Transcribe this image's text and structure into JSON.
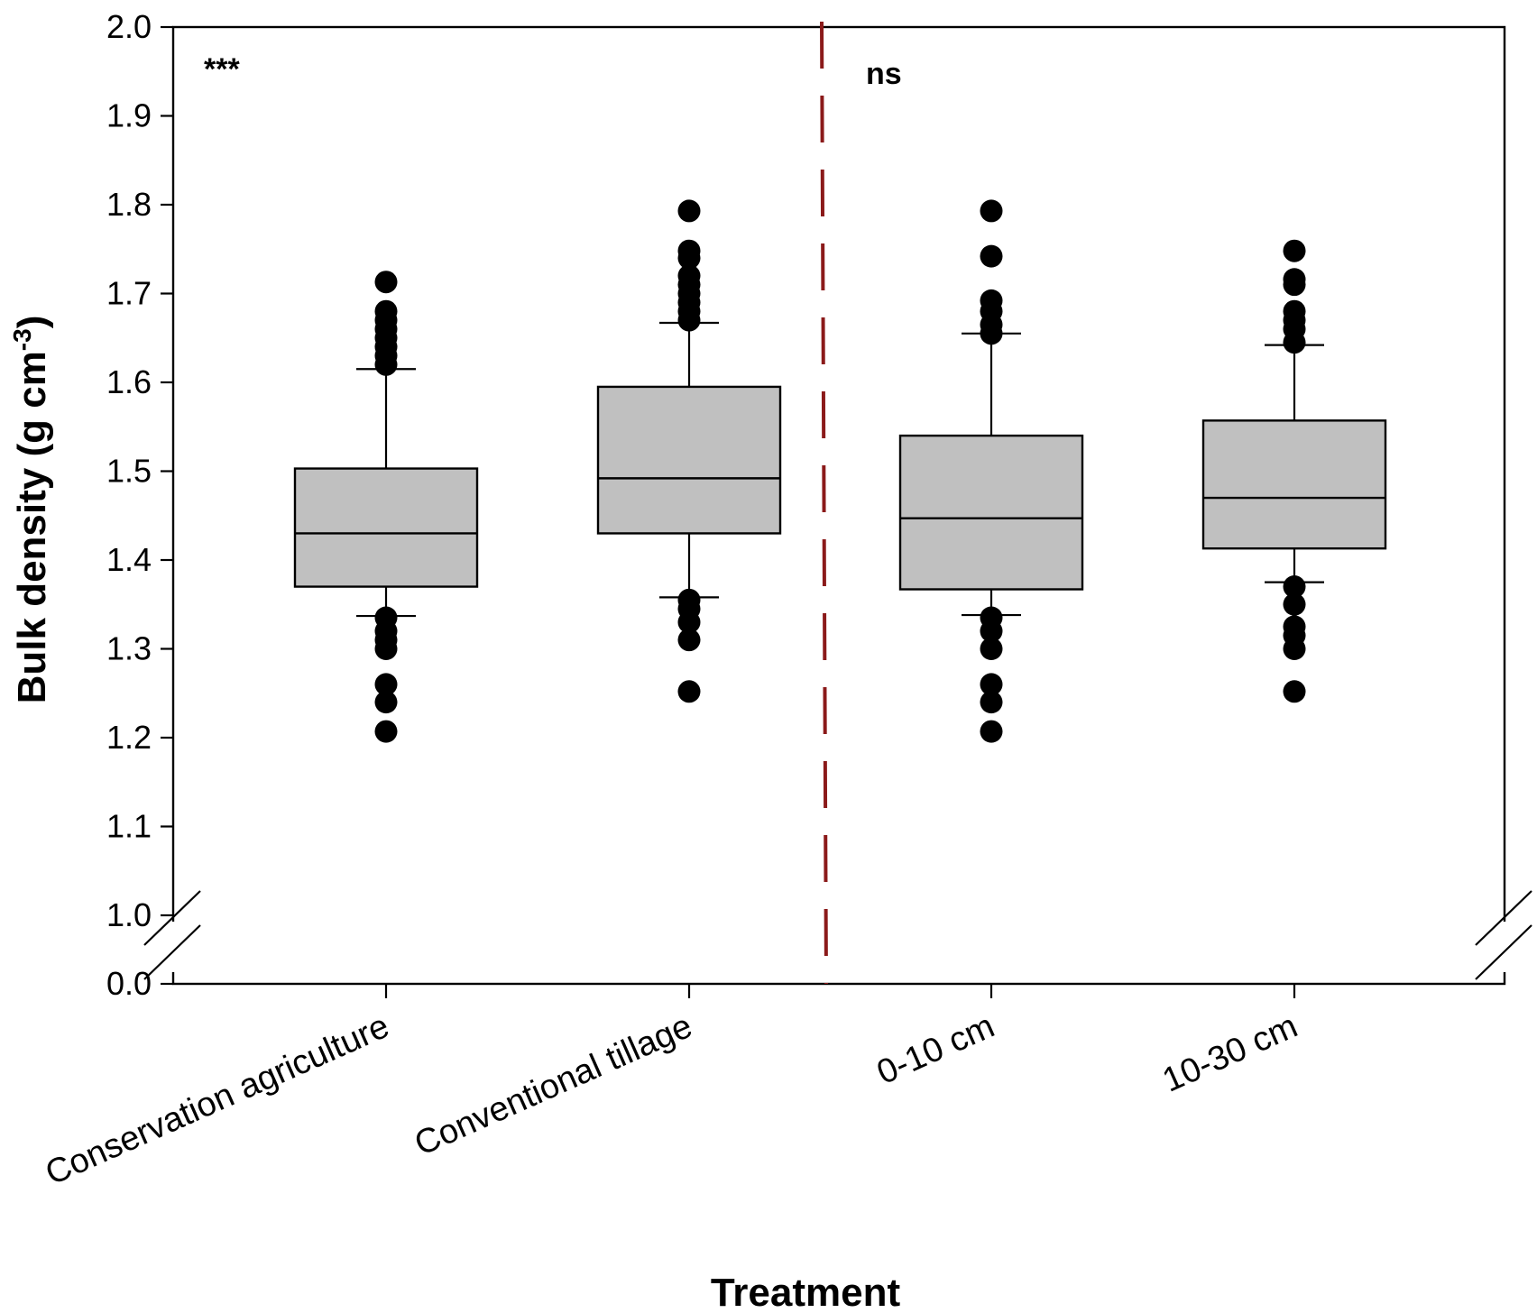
{
  "chart_data": {
    "type": "box",
    "title": "",
    "xlabel": "Treatment",
    "ylabel": "Bulk density (g cm",
    "ylabel_superscript": "-3",
    "ylabel_close": ")",
    "y_axis_break": true,
    "ylim": [
      1.0,
      2.0
    ],
    "yticks": [
      "2.0",
      "1.9",
      "1.8",
      "1.7",
      "1.6",
      "1.5",
      "1.4",
      "1.3",
      "1.2",
      "1.1",
      "1.0",
      "0.0"
    ],
    "categories": [
      "Conservation agriculture",
      "Conventional tillage",
      "0-10 cm",
      "10-30 cm"
    ],
    "boxes": [
      {
        "name": "Conservation agriculture",
        "whisker_low": 1.337,
        "q1": 1.37,
        "median": 1.43,
        "q3": 1.503,
        "whisker_high": 1.615,
        "outliers": [
          1.713,
          1.68,
          1.67,
          1.66,
          1.65,
          1.64,
          1.63,
          1.62,
          1.335,
          1.32,
          1.31,
          1.3,
          1.26,
          1.24,
          1.207
        ]
      },
      {
        "name": "Conventional tillage",
        "whisker_low": 1.358,
        "q1": 1.43,
        "median": 1.492,
        "q3": 1.595,
        "whisker_high": 1.667,
        "outliers": [
          1.793,
          1.748,
          1.74,
          1.72,
          1.71,
          1.7,
          1.69,
          1.68,
          1.67,
          1.355,
          1.345,
          1.33,
          1.31,
          1.252
        ]
      },
      {
        "name": "0-10 cm",
        "whisker_low": 1.338,
        "q1": 1.367,
        "median": 1.447,
        "q3": 1.54,
        "whisker_high": 1.655,
        "outliers": [
          1.793,
          1.742,
          1.692,
          1.68,
          1.665,
          1.655,
          1.335,
          1.32,
          1.3,
          1.26,
          1.24,
          1.207
        ]
      },
      {
        "name": "10-30 cm",
        "whisker_low": 1.375,
        "q1": 1.413,
        "median": 1.47,
        "q3": 1.557,
        "whisker_high": 1.642,
        "outliers": [
          1.748,
          1.716,
          1.71,
          1.68,
          1.67,
          1.66,
          1.645,
          1.37,
          1.35,
          1.325,
          1.315,
          1.3,
          1.252
        ]
      }
    ],
    "annotations": [
      {
        "text": "***",
        "group": "left"
      },
      {
        "text": "ns",
        "group": "right"
      }
    ],
    "divider": {
      "style": "dashed",
      "color": "#8b1a1a"
    },
    "colors": {
      "box_fill": "#c0c0c0",
      "stroke": "#000000",
      "outlier": "#000000"
    }
  }
}
